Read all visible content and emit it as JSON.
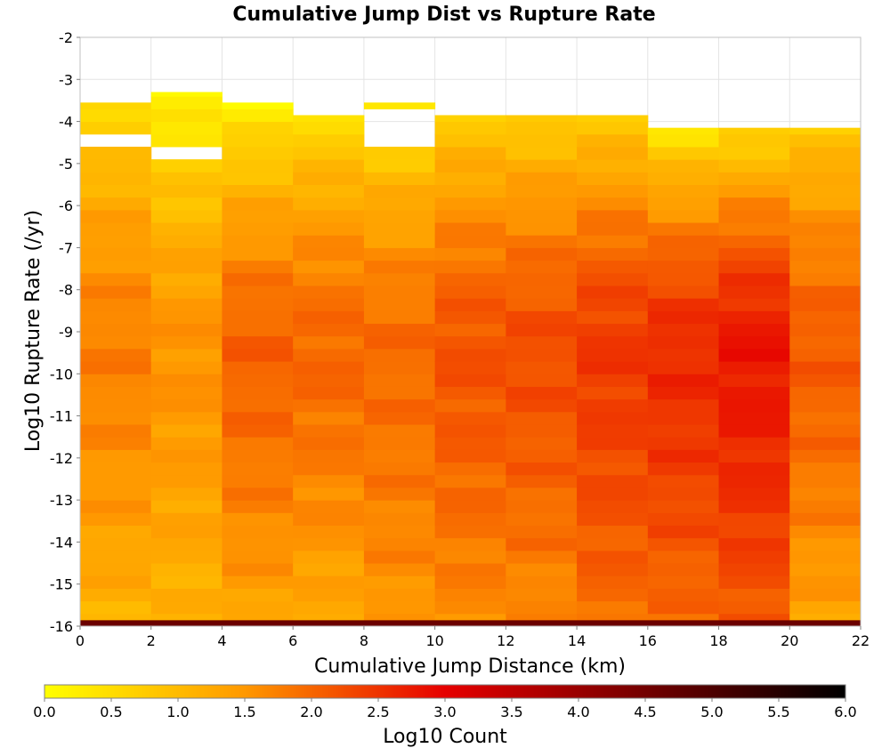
{
  "chart_data": {
    "type": "heatmap",
    "title": "Cumulative Jump Dist vs Rupture Rate",
    "xlabel": "Cumulative Jump Distance (km)",
    "ylabel": "Log10 Rupture Rate (/yr)",
    "xlim": [
      0,
      22
    ],
    "ylim": [
      -16,
      -2
    ],
    "x_ticks": [
      "0",
      "2",
      "4",
      "6",
      "8",
      "10",
      "12",
      "14",
      "16",
      "18",
      "20",
      "22"
    ],
    "y_ticks": [
      "-2",
      "-3",
      "-4",
      "-5",
      "-6",
      "-7",
      "-8",
      "-9",
      "-10",
      "-11",
      "-12",
      "-13",
      "-14",
      "-15",
      "-16"
    ],
    "x_bin_width": 2,
    "y_bin_height": 0.3,
    "x_bin_starts": [
      0,
      2,
      4,
      6,
      8,
      10,
      12,
      14,
      16,
      18,
      20
    ],
    "y_bin_starts": [
      -16.0,
      -15.7,
      -15.4,
      -15.1,
      -14.8,
      -14.5,
      -14.2,
      -13.9,
      -13.6,
      -13.3,
      -13.0,
      -12.7,
      -12.4,
      -12.1,
      -11.8,
      -11.5,
      -11.2,
      -10.9,
      -10.6,
      -10.3,
      -10.0,
      -9.7,
      -9.4,
      -9.1,
      -8.8,
      -8.5,
      -8.2,
      -7.9,
      -7.6,
      -7.3,
      -7.0,
      -6.7,
      -6.4,
      -6.1,
      -5.8,
      -5.5,
      -5.2,
      -4.9,
      -4.6,
      -4.3,
      -4.0,
      -3.7,
      -3.4
    ],
    "bottom_row": {
      "y_range": [
        -16.0,
        -15.86
      ],
      "log10_count": 4.6
    },
    "column_profiles": [
      {
        "x_start": 0,
        "y_top": -3.55,
        "gaps": [
          [
            -4.55,
            -4.3
          ]
        ],
        "peak": 1.75,
        "top_value": 0.6,
        "bottom_value": 1.1
      },
      {
        "x_start": 2,
        "y_top": -3.3,
        "gaps": [
          [
            -5.0,
            -4.45
          ]
        ],
        "peak": 1.55,
        "top_value": 0.1,
        "bottom_value": 1.1
      },
      {
        "x_start": 4,
        "y_top": -3.55,
        "gaps": [],
        "peak": 2.05,
        "top_value": 0.2,
        "bottom_value": 1.3
      },
      {
        "x_start": 6,
        "y_top": -3.85,
        "gaps": [],
        "peak": 2.0,
        "top_value": 0.5,
        "bottom_value": 1.2
      },
      {
        "x_start": 8,
        "y_top": -3.55,
        "gaps": [
          [
            -4.45,
            -3.85
          ]
        ],
        "peak": 1.95,
        "top_value": 0.3,
        "bottom_value": 1.5
      },
      {
        "x_start": 10,
        "y_top": -3.85,
        "gaps": [],
        "peak": 2.2,
        "top_value": 0.7,
        "bottom_value": 1.6
      },
      {
        "x_start": 12,
        "y_top": -3.85,
        "gaps": [],
        "peak": 2.25,
        "top_value": 0.7,
        "bottom_value": 1.6
      },
      {
        "x_start": 14,
        "y_top": -3.85,
        "gaps": [],
        "peak": 2.45,
        "top_value": 0.7,
        "bottom_value": 1.9
      },
      {
        "x_start": 16,
        "y_top": -4.15,
        "gaps": [],
        "peak": 2.6,
        "top_value": 0.4,
        "bottom_value": 1.9
      },
      {
        "x_start": 18,
        "y_top": -4.15,
        "gaps": [],
        "peak": 2.8,
        "top_value": 0.5,
        "bottom_value": 2.1
      },
      {
        "x_start": 20,
        "y_top": -4.15,
        "gaps": [],
        "peak": 2.1,
        "top_value": 0.8,
        "bottom_value": 1.3
      }
    ],
    "colorbar": {
      "label": "Log10 Count",
      "range": [
        0.0,
        6.0
      ],
      "ticks": [
        "0.0",
        "0.5",
        "1.0",
        "1.5",
        "2.0",
        "2.5",
        "3.0",
        "3.5",
        "4.0",
        "4.5",
        "5.0",
        "5.5",
        "6.0"
      ],
      "colormap_stops": [
        {
          "value": 0.0,
          "color": "#ffff00"
        },
        {
          "value": 1.5,
          "color": "#ff9800"
        },
        {
          "value": 3.0,
          "color": "#e60000"
        },
        {
          "value": 6.0,
          "color": "#000000"
        }
      ]
    },
    "grid": true,
    "legend": "colorbar-bottom"
  }
}
